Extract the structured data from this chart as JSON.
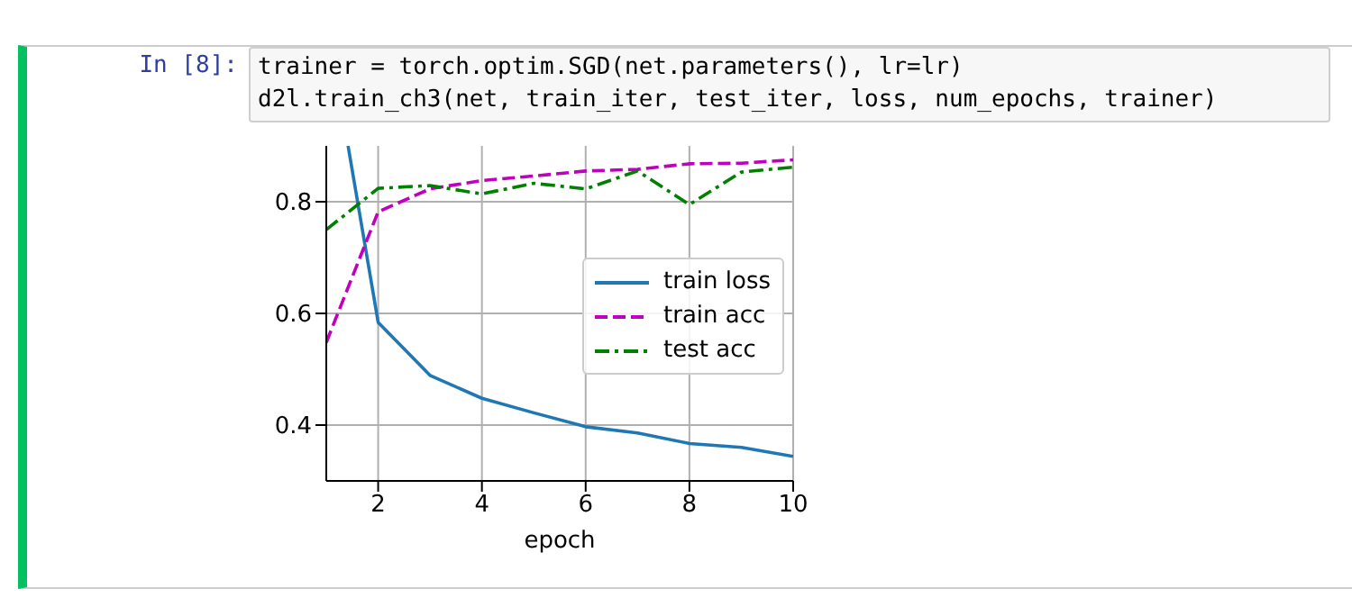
{
  "chart_data": {
    "type": "line",
    "annotations": [
      "In [8]:",
      "trainer = torch.optim.SGD(net.parameters(), lr=lr)",
      "d2l.train_ch3(net, train_iter, test_iter, loss, num_epochs, trainer)"
    ],
    "xlabel": "epoch",
    "x": [
      1,
      2,
      3,
      4,
      5,
      6,
      7,
      8,
      9,
      10
    ],
    "series": [
      {
        "name": "train loss",
        "color": "#1f77b4",
        "line_style": "solid",
        "x": [
          1.42,
          2,
          3,
          4,
          5,
          6,
          7,
          8,
          9,
          10
        ],
        "values": [
          0.9,
          0.584,
          0.489,
          0.448,
          0.422,
          0.397,
          0.386,
          0.367,
          0.36,
          0.344
        ]
      },
      {
        "name": "train acc",
        "color": "#bf00bf",
        "line_style": "dashed",
        "values": [
          0.548,
          0.782,
          0.823,
          0.838,
          0.846,
          0.855,
          0.858,
          0.868,
          0.869,
          0.875
        ]
      },
      {
        "name": "test acc",
        "color": "#008000",
        "line_style": "dashdot",
        "values": [
          0.75,
          0.824,
          0.829,
          0.814,
          0.833,
          0.823,
          0.855,
          0.795,
          0.853,
          0.862
        ]
      }
    ],
    "xlim": [
      1,
      10
    ],
    "xticks": [
      2,
      4,
      6,
      8,
      10
    ],
    "ylim": [
      0.3,
      0.9
    ],
    "yticks": [
      0.4,
      0.6,
      0.8
    ],
    "grid": true,
    "legend": "center right",
    "marker": "none"
  }
}
